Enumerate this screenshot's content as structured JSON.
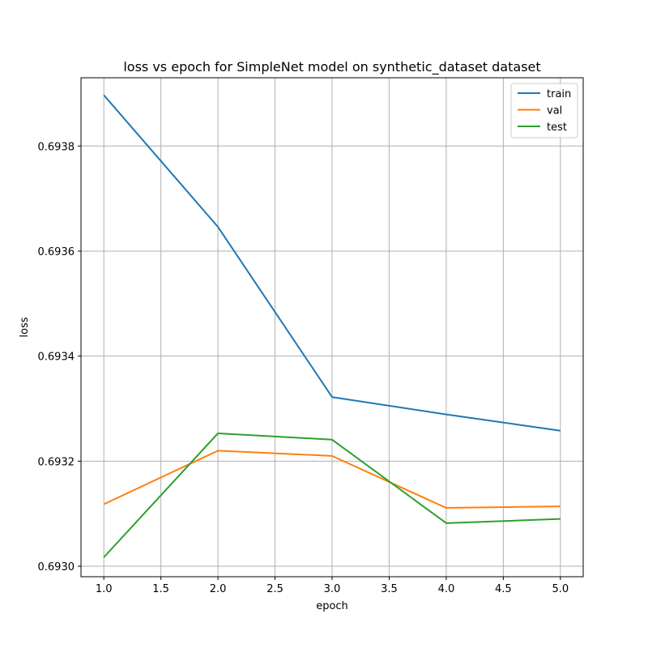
{
  "chart_data": {
    "type": "line",
    "title": "loss vs epoch for SimpleNet model on synthetic_dataset dataset",
    "xlabel": "epoch",
    "ylabel": "loss",
    "x": [
      1,
      2,
      3,
      4,
      5
    ],
    "xlim": [
      0.8,
      5.2
    ],
    "ylim": [
      0.69298,
      0.69393
    ],
    "xticks": [
      1.0,
      1.5,
      2.0,
      2.5,
      3.0,
      3.5,
      4.0,
      4.5,
      5.0
    ],
    "xtick_labels": [
      "1.0",
      "1.5",
      "2.0",
      "2.5",
      "3.0",
      "3.5",
      "4.0",
      "4.5",
      "5.0"
    ],
    "yticks": [
      0.693,
      0.6932,
      0.6934,
      0.6936,
      0.6938
    ],
    "ytick_labels": [
      "0.6930",
      "0.6932",
      "0.6934",
      "0.6936",
      "0.6938"
    ],
    "grid": true,
    "legend_position": "top-right",
    "series": [
      {
        "name": "train",
        "color": "#1f77b4",
        "values": [
          0.693897,
          0.693646,
          0.693322,
          0.693289,
          0.693258
        ]
      },
      {
        "name": "val",
        "color": "#ff7f0e",
        "values": [
          0.693118,
          0.69322,
          0.69321,
          0.693111,
          0.693114
        ]
      },
      {
        "name": "test",
        "color": "#2ca02c",
        "values": [
          0.693017,
          0.693253,
          0.693241,
          0.693082,
          0.69309
        ]
      }
    ]
  }
}
